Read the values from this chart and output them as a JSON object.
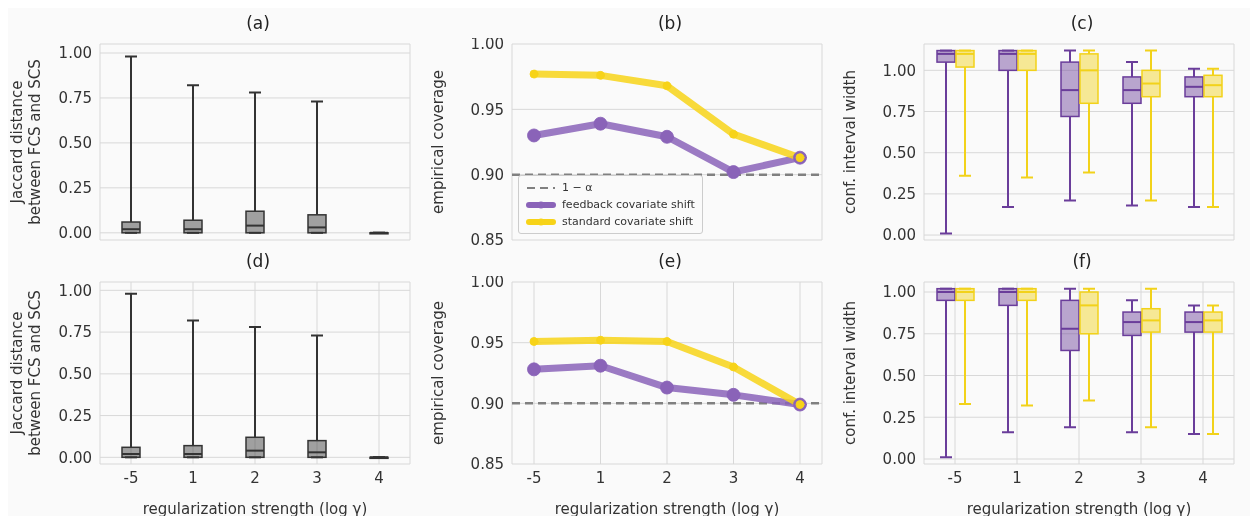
{
  "chart_data": [
    {
      "type": "box",
      "title": "(a)",
      "ylabel": "Jaccard distance\nbetween FCS and SCS",
      "categories": [
        "-5",
        "1",
        "2",
        "3",
        "4"
      ],
      "ylim": [
        -0.04,
        1.05
      ],
      "yticks": [
        {
          "value": 0,
          "label": "0.00"
        },
        {
          "value": 0.25,
          "label": "0.25"
        },
        {
          "value": 0.5,
          "label": "0.50"
        },
        {
          "value": 0.75,
          "label": "0.75"
        },
        {
          "value": 1,
          "label": "1.00"
        }
      ],
      "grid": true,
      "tick_labels": "y",
      "series": [
        {
          "color": "#333333",
          "boxes": [
            {
              "low": 0,
              "q1": 0,
              "median": 0.02,
              "q3": 0.06,
              "high": 0.98
            },
            {
              "low": 0,
              "q1": 0,
              "median": 0.02,
              "q3": 0.07,
              "high": 0.82
            },
            {
              "low": 0,
              "q1": 0,
              "median": 0.04,
              "q3": 0.12,
              "high": 0.78
            },
            {
              "low": 0,
              "q1": 0,
              "median": 0.03,
              "q3": 0.1,
              "high": 0.73
            },
            {
              "low": 0,
              "q1": 0,
              "median": 0,
              "q3": 0,
              "high": 0
            }
          ]
        }
      ]
    },
    {
      "type": "line",
      "title": "(b)",
      "ylabel": "empirical coverage",
      "categories": [
        "-5",
        "1",
        "2",
        "3",
        "4"
      ],
      "ylim": [
        0.85,
        1
      ],
      "yticks": [
        {
          "value": 0.85,
          "label": "0.85"
        },
        {
          "value": 0.9,
          "label": "0.90"
        },
        {
          "value": 0.95,
          "label": "0.95"
        },
        {
          "value": 1,
          "label": "1.00"
        }
      ],
      "grid": true,
      "tick_labels": "y",
      "marker": "circle",
      "legend": "bottom left",
      "ref_lines": [
        {
          "axis": "y",
          "value": 0.9,
          "label": "1 − α",
          "color": "#808080",
          "line_style": "dashed"
        }
      ],
      "series": [
        {
          "name": "feedback covariate shift",
          "color": "#8a63b8",
          "values": [
            0.93,
            0.939,
            0.929,
            0.902,
            0.913
          ]
        },
        {
          "name": "standard covariate shift",
          "color": "#f7d318",
          "values": [
            0.977,
            0.976,
            0.968,
            0.931,
            0.913
          ]
        }
      ]
    },
    {
      "type": "box",
      "title": "(c)",
      "ylabel": "conf. interval width",
      "categories": [
        "-5",
        "1",
        "2",
        "3",
        "4"
      ],
      "ylim": [
        -0.03,
        1.16
      ],
      "yticks": [
        {
          "value": 0,
          "label": "0.00"
        },
        {
          "value": 0.25,
          "label": "0.25"
        },
        {
          "value": 0.5,
          "label": "0.50"
        },
        {
          "value": 0.75,
          "label": "0.75"
        },
        {
          "value": 1,
          "label": "1.00"
        }
      ],
      "grid": true,
      "tick_labels": "y",
      "series": [
        {
          "color": "#6a3d9a",
          "boxes": [
            {
              "low": 0.01,
              "q1": 1.05,
              "median": 1.1,
              "q3": 1.12,
              "high": 1.12
            },
            {
              "low": 0.17,
              "q1": 1.0,
              "median": 1.1,
              "q3": 1.12,
              "high": 1.12
            },
            {
              "low": 0.21,
              "q1": 0.72,
              "median": 0.88,
              "q3": 1.05,
              "high": 1.12
            },
            {
              "low": 0.18,
              "q1": 0.8,
              "median": 0.88,
              "q3": 0.96,
              "high": 1.05
            },
            {
              "low": 0.17,
              "q1": 0.84,
              "median": 0.9,
              "q3": 0.96,
              "high": 1.01
            }
          ]
        },
        {
          "color": "#f2d21a",
          "boxes": [
            {
              "low": 0.36,
              "q1": 1.02,
              "median": 1.1,
              "q3": 1.12,
              "high": 1.12
            },
            {
              "low": 0.35,
              "q1": 1.0,
              "median": 1.1,
              "q3": 1.12,
              "high": 1.12
            },
            {
              "low": 0.38,
              "q1": 0.8,
              "median": 1.0,
              "q3": 1.1,
              "high": 1.12
            },
            {
              "low": 0.21,
              "q1": 0.84,
              "median": 0.92,
              "q3": 1.0,
              "high": 1.12
            },
            {
              "low": 0.17,
              "q1": 0.84,
              "median": 0.91,
              "q3": 0.97,
              "high": 1.01
            }
          ]
        }
      ]
    },
    {
      "type": "box",
      "title": "(d)",
      "ylabel": "Jaccard distance\nbetween FCS and SCS",
      "xlabel": "regularization strength (log γ)",
      "categories": [
        "-5",
        "1",
        "2",
        "3",
        "4"
      ],
      "ylim": [
        -0.04,
        1.05
      ],
      "yticks": [
        {
          "value": 0,
          "label": "0.00"
        },
        {
          "value": 0.25,
          "label": "0.25"
        },
        {
          "value": 0.5,
          "label": "0.50"
        },
        {
          "value": 0.75,
          "label": "0.75"
        },
        {
          "value": 1,
          "label": "1.00"
        }
      ],
      "grid": true,
      "series": [
        {
          "color": "#333333",
          "boxes": [
            {
              "low": 0,
              "q1": 0,
              "median": 0.02,
              "q3": 0.06,
              "high": 0.98
            },
            {
              "low": 0,
              "q1": 0,
              "median": 0.02,
              "q3": 0.07,
              "high": 0.82
            },
            {
              "low": 0,
              "q1": 0,
              "median": 0.04,
              "q3": 0.12,
              "high": 0.78
            },
            {
              "low": 0,
              "q1": 0,
              "median": 0.03,
              "q3": 0.1,
              "high": 0.73
            },
            {
              "low": 0,
              "q1": 0,
              "median": 0,
              "q3": 0,
              "high": 0
            }
          ]
        }
      ]
    },
    {
      "type": "line",
      "title": "(e)",
      "ylabel": "empirical coverage",
      "xlabel": "regularization strength (log γ)",
      "categories": [
        "-5",
        "1",
        "2",
        "3",
        "4"
      ],
      "ylim": [
        0.85,
        1
      ],
      "yticks": [
        {
          "value": 0.85,
          "label": "0.85"
        },
        {
          "value": 0.9,
          "label": "0.90"
        },
        {
          "value": 0.95,
          "label": "0.95"
        },
        {
          "value": 1,
          "label": "1.00"
        }
      ],
      "grid": true,
      "marker": "circle",
      "ref_lines": [
        {
          "axis": "y",
          "value": 0.9,
          "color": "#808080",
          "line_style": "dashed"
        }
      ],
      "series": [
        {
          "color": "#8a63b8",
          "values": [
            0.928,
            0.931,
            0.913,
            0.907,
            0.899
          ]
        },
        {
          "color": "#f7d318",
          "values": [
            0.951,
            0.952,
            0.951,
            0.93,
            0.899
          ]
        }
      ]
    },
    {
      "type": "box",
      "title": "(f)",
      "ylabel": "conf. interval width",
      "xlabel": "regularization strength (log γ)",
      "categories": [
        "-5",
        "1",
        "2",
        "3",
        "4"
      ],
      "ylim": [
        -0.03,
        1.06
      ],
      "yticks": [
        {
          "value": 0,
          "label": "0.00"
        },
        {
          "value": 0.25,
          "label": "0.25"
        },
        {
          "value": 0.5,
          "label": "0.50"
        },
        {
          "value": 0.75,
          "label": "0.75"
        },
        {
          "value": 1,
          "label": "1.00"
        }
      ],
      "grid": true,
      "series": [
        {
          "color": "#6a3d9a",
          "boxes": [
            {
              "low": 0.01,
              "q1": 0.95,
              "median": 1.0,
              "q3": 1.02,
              "high": 1.02
            },
            {
              "low": 0.16,
              "q1": 0.92,
              "median": 1.0,
              "q3": 1.02,
              "high": 1.02
            },
            {
              "low": 0.19,
              "q1": 0.65,
              "median": 0.78,
              "q3": 0.95,
              "high": 1.02
            },
            {
              "low": 0.16,
              "q1": 0.74,
              "median": 0.82,
              "q3": 0.88,
              "high": 0.95
            },
            {
              "low": 0.15,
              "q1": 0.76,
              "median": 0.82,
              "q3": 0.88,
              "high": 0.92
            }
          ]
        },
        {
          "color": "#f2d21a",
          "boxes": [
            {
              "low": 0.33,
              "q1": 0.95,
              "median": 1.0,
              "q3": 1.02,
              "high": 1.02
            },
            {
              "low": 0.32,
              "q1": 0.95,
              "median": 1.0,
              "q3": 1.02,
              "high": 1.02
            },
            {
              "low": 0.35,
              "q1": 0.75,
              "median": 0.92,
              "q3": 1.0,
              "high": 1.02
            },
            {
              "low": 0.19,
              "q1": 0.76,
              "median": 0.83,
              "q3": 0.9,
              "high": 1.02
            },
            {
              "low": 0.15,
              "q1": 0.76,
              "median": 0.83,
              "q3": 0.88,
              "high": 0.92
            }
          ]
        }
      ]
    }
  ]
}
